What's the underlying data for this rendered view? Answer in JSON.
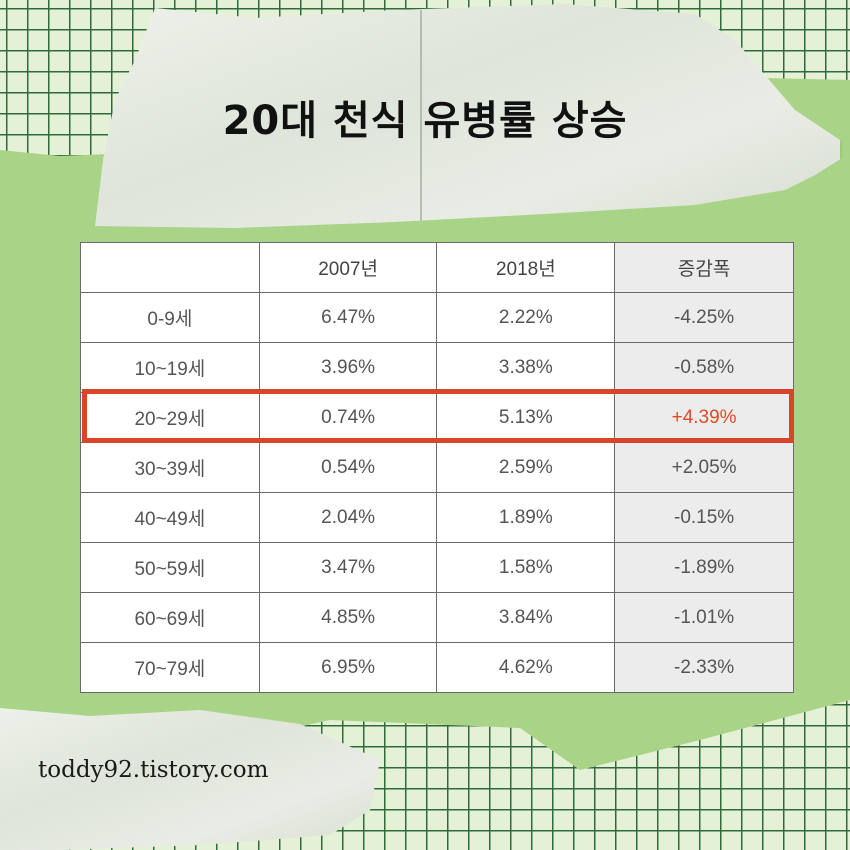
{
  "title": "20대 천식 유병률 상승",
  "table": {
    "headers": [
      "",
      "2007년",
      "2018년",
      "증감폭"
    ],
    "rows": [
      [
        "0-9세",
        "6.47%",
        "2.22%",
        "-4.25%"
      ],
      [
        "10~19세",
        "3.96%",
        "3.38%",
        "-0.58%"
      ],
      [
        "20~29세",
        "0.74%",
        "5.13%",
        "+4.39%"
      ],
      [
        "30~39세",
        "0.54%",
        "2.59%",
        "+2.05%"
      ],
      [
        "40~49세",
        "2.04%",
        "1.89%",
        "-0.15%"
      ],
      [
        "50~59세",
        "3.47%",
        "1.58%",
        "-1.89%"
      ],
      [
        "60~69세",
        "4.85%",
        "3.84%",
        "-1.01%"
      ],
      [
        "70~79세",
        "6.95%",
        "4.62%",
        "-2.33%"
      ]
    ],
    "highlighted_row": 2
  },
  "footer": "toddy92.tistory.com",
  "colors": {
    "background": "#a9d386",
    "highlight": "#d9442b",
    "highlight_text": "#e04a24",
    "change_column_bg": "#ececec"
  }
}
